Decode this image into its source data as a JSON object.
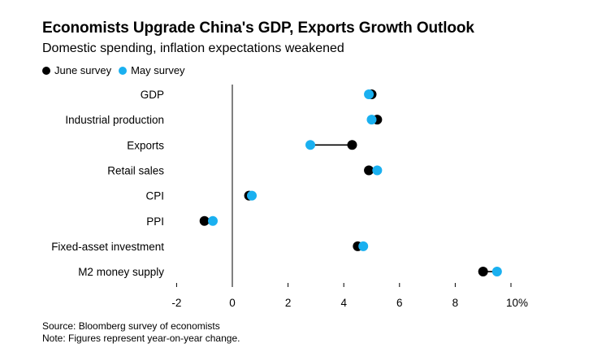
{
  "title": "Economists Upgrade China's GDP, Exports Growth Outlook",
  "subtitle": "Domestic spending, inflation expectations weakened",
  "legend": [
    {
      "name": "June survey",
      "color": "#000000"
    },
    {
      "name": "May survey",
      "color": "#1ab0f0"
    }
  ],
  "footer": {
    "source": "Source: Bloomberg survey of economists",
    "note": "Note: Figures represent year-on-year change."
  },
  "chart_data": {
    "type": "dot",
    "title": "Economists Upgrade China's GDP, Exports Growth Outlook",
    "subtitle": "Domestic spending, inflation expectations weakened",
    "categories": [
      "GDP",
      "Industrial production",
      "Exports",
      "Retail sales",
      "CPI",
      "PPI",
      "Fixed-asset investment",
      "M2 money supply"
    ],
    "series": [
      {
        "name": "June survey",
        "color": "#000000",
        "values": [
          5.0,
          5.2,
          4.3,
          4.9,
          0.6,
          -1.0,
          4.5,
          9.0
        ]
      },
      {
        "name": "May survey",
        "color": "#1ab0f0",
        "values": [
          4.9,
          5.0,
          2.8,
          5.2,
          0.7,
          -0.7,
          4.7,
          9.5
        ]
      }
    ],
    "x_ticks": [
      -2,
      0,
      2,
      4,
      6,
      8,
      10
    ],
    "x_tick_labels": [
      "-2",
      "0",
      "2",
      "4",
      "6",
      "8",
      "10%"
    ],
    "xlim": [
      -2,
      10
    ]
  }
}
